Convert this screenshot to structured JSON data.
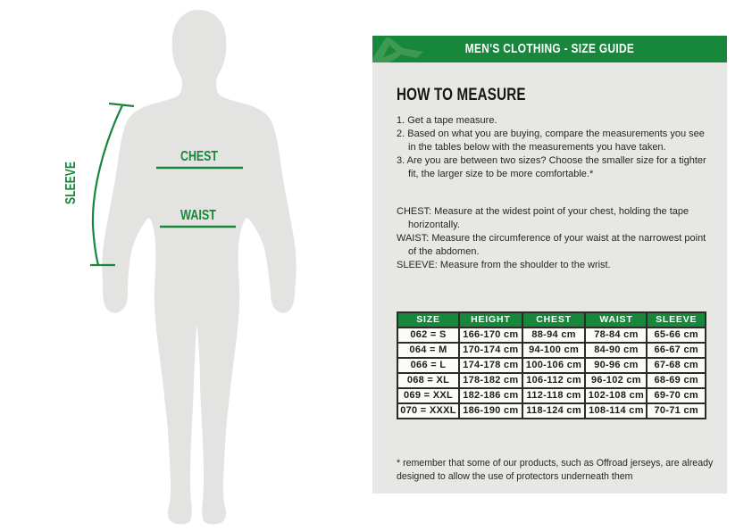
{
  "colors": {
    "accent_green": "#17873B",
    "logo_green": "#3D9A52",
    "panel_bg": "#E7E7E5",
    "silhouette_gray": "#E3E3E1",
    "table_border": "#2B2B28",
    "text": "#1D1D1B"
  },
  "figure": {
    "sleeve_label": "SLEEVE",
    "chest_label": "CHEST",
    "waist_label": "WAIST"
  },
  "panel": {
    "logo_icon": "acerbis-a-swoosh-logo",
    "title": "MEN'S CLOTHING - SIZE GUIDE",
    "heading": "HOW TO MEASURE",
    "steps": [
      "1. Get a tape measure.",
      "2. Based on what you are buying, compare the measurements you see in the tables below with the measurements you have taken.",
      "3. Are you are between two sizes? Choose the smaller size for a tighter fit, the larger size to be more comfortable.*"
    ],
    "definitions": [
      "CHEST: Measure at the widest point of your chest, holding the tape horizontally.",
      "WAIST: Measure the circumference of your waist at the narrowest point of the abdomen.",
      "SLEEVE: Measure from the shoulder to the wrist."
    ],
    "footnote": "* remember that some of our products, such as Offroad jerseys, are already designed to allow the use of protectors underneath them"
  },
  "table": {
    "headers": [
      "SIZE",
      "HEIGHT",
      "CHEST",
      "WAIST",
      "SLEEVE"
    ],
    "rows": [
      [
        "062 = S",
        "166-170 cm",
        "88-94 cm",
        "78-84 cm",
        "65-66 cm"
      ],
      [
        "064 = M",
        "170-174 cm",
        "94-100 cm",
        "84-90 cm",
        "66-67 cm"
      ],
      [
        "066 = L",
        "174-178 cm",
        "100-106 cm",
        "90-96 cm",
        "67-68 cm"
      ],
      [
        "068 = XL",
        "178-182 cm",
        "106-112 cm",
        "96-102 cm",
        "68-69 cm"
      ],
      [
        "069 = XXL",
        "182-186 cm",
        "112-118 cm",
        "102-108 cm",
        "69-70 cm"
      ],
      [
        "070 = XXXL",
        "186-190 cm",
        "118-124 cm",
        "108-114 cm",
        "70-71 cm"
      ]
    ]
  }
}
